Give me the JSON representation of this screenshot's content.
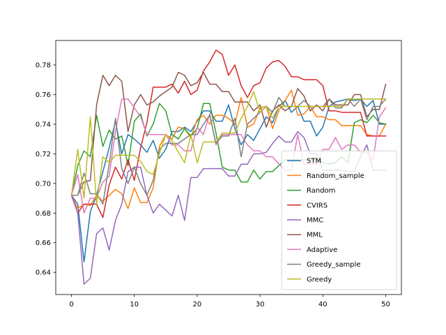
{
  "chart_data": {
    "type": "line",
    "title": "",
    "xlabel": "",
    "ylabel": "",
    "xlim": [
      -2.5,
      52.5
    ],
    "ylim": [
      0.625,
      0.7965
    ],
    "xticks": [
      0,
      10,
      20,
      30,
      40,
      50
    ],
    "yticks": [
      0.64,
      0.66,
      0.68,
      0.7,
      0.72,
      0.74,
      0.76,
      0.78
    ],
    "ytick_labels": [
      "0.64",
      "0.66",
      "0.68",
      "0.70",
      "0.72",
      "0.74",
      "0.76",
      "0.78"
    ],
    "legend_position": "lower-right",
    "grid": false,
    "x": [
      0,
      1,
      2,
      3,
      4,
      5,
      6,
      7,
      8,
      9,
      10,
      11,
      12,
      13,
      14,
      15,
      16,
      17,
      18,
      19,
      20,
      21,
      22,
      23,
      24,
      25,
      26,
      27,
      28,
      29,
      30,
      31,
      32,
      33,
      34,
      35,
      36,
      37,
      38,
      39,
      40,
      41,
      42,
      43,
      44,
      45,
      46,
      47,
      48,
      49,
      50
    ],
    "series": [
      {
        "name": "STM",
        "color": "#1f77b4",
        "values": [
          0.692,
          0.686,
          0.647,
          0.681,
          0.692,
          0.708,
          0.724,
          0.742,
          0.72,
          0.733,
          0.73,
          0.726,
          0.721,
          0.729,
          0.717,
          0.723,
          0.735,
          0.735,
          0.738,
          0.735,
          0.742,
          0.749,
          0.749,
          0.742,
          0.742,
          0.753,
          0.737,
          0.726,
          0.733,
          0.729,
          0.737,
          0.745,
          0.741,
          0.752,
          0.756,
          0.748,
          0.752,
          0.742,
          0.742,
          0.732,
          0.738,
          0.752,
          0.755,
          0.756,
          0.757,
          0.756,
          0.757,
          0.752,
          0.756,
          0.74,
          0.74
        ]
      },
      {
        "name": "Random_sample",
        "color": "#ff7f0e",
        "values": [
          0.692,
          0.683,
          0.686,
          0.685,
          0.692,
          0.688,
          0.692,
          0.696,
          0.693,
          0.683,
          0.697,
          0.687,
          0.687,
          0.697,
          0.725,
          0.733,
          0.73,
          0.738,
          0.737,
          0.731,
          0.743,
          0.746,
          0.74,
          0.746,
          0.746,
          0.744,
          0.74,
          0.758,
          0.738,
          0.74,
          0.751,
          0.752,
          0.737,
          0.749,
          0.756,
          0.763,
          0.746,
          0.747,
          0.752,
          0.745,
          0.745,
          0.743,
          0.743,
          0.739,
          0.739,
          0.739,
          0.739,
          0.733,
          0.732,
          0.732,
          0.74
        ]
      },
      {
        "name": "Random",
        "color": "#2ca02c",
        "values": [
          0.692,
          0.712,
          0.722,
          0.718,
          0.746,
          0.725,
          0.736,
          0.73,
          0.732,
          0.712,
          0.742,
          0.747,
          0.732,
          0.74,
          0.754,
          0.749,
          0.733,
          0.73,
          0.737,
          0.732,
          0.737,
          0.754,
          0.754,
          0.734,
          0.711,
          0.709,
          0.709,
          0.701,
          0.701,
          0.709,
          0.703,
          0.708,
          0.708,
          0.712,
          0.716,
          0.716,
          0.716,
          0.716,
          0.716,
          0.716,
          0.714,
          0.713,
          0.714,
          0.718,
          0.714,
          0.741,
          0.743,
          0.741,
          0.746,
          0.741,
          0.74
        ]
      },
      {
        "name": "CVIRS",
        "color": "#d62728",
        "values": [
          0.692,
          0.68,
          0.686,
          0.686,
          0.686,
          0.677,
          0.699,
          0.711,
          0.703,
          0.716,
          0.702,
          0.724,
          0.741,
          0.765,
          0.765,
          0.765,
          0.767,
          0.761,
          0.769,
          0.76,
          0.763,
          0.776,
          0.782,
          0.79,
          0.787,
          0.773,
          0.78,
          0.766,
          0.758,
          0.766,
          0.768,
          0.778,
          0.782,
          0.783,
          0.779,
          0.772,
          0.772,
          0.77,
          0.77,
          0.77,
          0.766,
          0.749,
          0.749,
          0.748,
          0.748,
          0.748,
          0.748,
          0.732,
          0.732,
          0.732,
          0.732
        ]
      },
      {
        "name": "MMC",
        "color": "#9467bd",
        "values": [
          0.692,
          0.68,
          0.632,
          0.636,
          0.666,
          0.67,
          0.655,
          0.675,
          0.686,
          0.708,
          0.711,
          0.711,
          0.692,
          0.68,
          0.686,
          0.682,
          0.678,
          0.692,
          0.675,
          0.704,
          0.704,
          0.71,
          0.71,
          0.71,
          0.71,
          0.705,
          0.705,
          0.713,
          0.713,
          0.72,
          0.72,
          0.721,
          0.727,
          0.732,
          0.728,
          0.728,
          0.735,
          0.731,
          0.72,
          0.72,
          0.709,
          0.709,
          0.709,
          0.709,
          0.708,
          0.708,
          0.718,
          0.726,
          0.709,
          0.709,
          0.709
        ]
      },
      {
        "name": "MML",
        "color": "#8c564b",
        "values": [
          0.692,
          0.692,
          0.701,
          0.702,
          0.753,
          0.773,
          0.766,
          0.773,
          0.769,
          0.735,
          0.753,
          0.76,
          0.753,
          0.755,
          0.759,
          0.762,
          0.765,
          0.775,
          0.773,
          0.766,
          0.768,
          0.775,
          0.767,
          0.767,
          0.762,
          0.762,
          0.755,
          0.755,
          0.755,
          0.749,
          0.753,
          0.738,
          0.749,
          0.753,
          0.749,
          0.752,
          0.764,
          0.759,
          0.749,
          0.753,
          0.749,
          0.757,
          0.753,
          0.753,
          0.753,
          0.76,
          0.76,
          0.745,
          0.75,
          0.75,
          0.767
        ]
      },
      {
        "name": "Adaptive",
        "color": "#e377c2",
        "values": [
          0.692,
          0.706,
          0.68,
          0.69,
          0.69,
          0.701,
          0.705,
          0.735,
          0.757,
          0.757,
          0.751,
          0.745,
          0.733,
          0.733,
          0.733,
          0.733,
          0.726,
          0.726,
          0.722,
          0.722,
          0.738,
          0.733,
          0.747,
          0.726,
          0.733,
          0.733,
          0.733,
          0.733,
          0.726,
          0.722,
          0.722,
          0.718,
          0.718,
          0.713,
          0.709,
          0.709,
          0.733,
          0.713,
          0.713,
          0.713,
          0.723,
          0.723,
          0.731,
          0.723,
          0.726,
          0.726,
          0.721,
          0.721,
          0.716,
          0.745,
          0.751
        ]
      },
      {
        "name": "Greedy_sample",
        "color": "#7f7f7f",
        "values": [
          0.692,
          0.692,
          0.707,
          0.693,
          0.693,
          0.686,
          0.713,
          0.744,
          0.71,
          0.7,
          0.711,
          0.7,
          0.692,
          0.702,
          0.723,
          0.727,
          0.727,
          0.727,
          0.73,
          0.733,
          0.733,
          0.74,
          0.746,
          0.727,
          0.732,
          0.732,
          0.744,
          0.718,
          0.74,
          0.744,
          0.748,
          0.752,
          0.748,
          0.758,
          0.752,
          0.752,
          0.752,
          0.756,
          0.752,
          0.752,
          0.752,
          0.757,
          0.751,
          0.751,
          0.757,
          0.752,
          0.757,
          0.743,
          0.752,
          0.752,
          0.757
        ]
      },
      {
        "name": "Greedy",
        "color": "#bcbd22",
        "values": [
          0.692,
          0.723,
          0.69,
          0.745,
          0.686,
          0.718,
          0.714,
          0.719,
          0.719,
          0.719,
          0.719,
          0.715,
          0.708,
          0.706,
          0.72,
          0.733,
          0.729,
          0.721,
          0.714,
          0.733,
          0.714,
          0.728,
          0.728,
          0.728,
          0.734,
          0.734,
          0.734,
          0.744,
          0.752,
          0.762,
          0.748,
          0.752,
          0.744,
          0.752,
          0.752,
          0.752,
          0.752,
          0.752,
          0.752,
          0.752,
          0.752,
          0.752,
          0.752,
          0.752,
          0.757,
          0.757,
          0.757,
          0.757,
          0.757,
          0.757,
          0.757
        ]
      }
    ]
  }
}
